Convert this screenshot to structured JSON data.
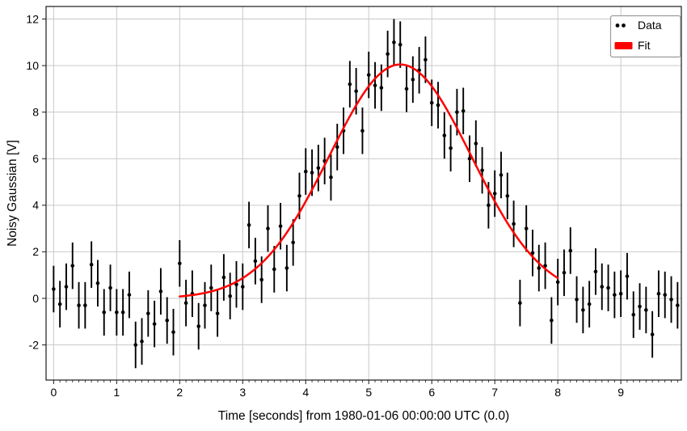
{
  "figure": {
    "background_color": "#ffffff",
    "grid_color": "#c9c9c9",
    "spine_color": "#1a1a1a",
    "data_color": "#000000",
    "fit_color": "#ff0000",
    "legend_border_color": "#9b9b9b"
  },
  "chart_data": {
    "type": "scatter",
    "title": "",
    "xlabel": "Time [seconds] from 1980-01-06 00:00:00 UTC (0.0)",
    "ylabel": "Noisy Gaussian [V]",
    "xlim": [
      -0.12,
      9.96
    ],
    "ylim": [
      -3.51,
      12.54
    ],
    "x_major_ticks": [
      0,
      1,
      2,
      3,
      4,
      5,
      6,
      7,
      8,
      9
    ],
    "x_minor_step": 0.1,
    "y_major_ticks": [
      -2,
      0,
      2,
      4,
      6,
      8,
      10,
      12
    ],
    "grid": true,
    "legend": {
      "position": "upper-right",
      "entries": [
        {
          "label": "Data",
          "type": "scatter",
          "color": "#000000"
        },
        {
          "label": "Fit",
          "type": "line",
          "color": "#ff0000"
        }
      ]
    },
    "series": [
      {
        "name": "Data",
        "type": "errorbar",
        "color": "#000000",
        "marker": "point",
        "yerr": 1.0,
        "x_start": 0.0,
        "x_step": 0.1,
        "y": [
          0.4,
          -0.25,
          0.5,
          1.4,
          -0.3,
          -0.3,
          1.45,
          0.65,
          -0.6,
          0.45,
          -0.6,
          -0.6,
          0.15,
          -2.0,
          -1.85,
          -0.65,
          -1.1,
          0.3,
          -0.95,
          -1.45,
          1.5,
          -0.2,
          0.2,
          -1.2,
          -0.3,
          0.45,
          -0.65,
          0.9,
          0.1,
          0.6,
          0.5,
          3.15,
          1.6,
          0.8,
          3.0,
          1.25,
          3.1,
          1.3,
          2.4,
          4.4,
          5.45,
          5.4,
          5.6,
          5.9,
          5.2,
          6.5,
          7.2,
          9.2,
          8.9,
          7.2,
          9.6,
          9.15,
          9.05,
          10.5,
          11.0,
          10.9,
          9.0,
          9.4,
          9.8,
          10.25,
          8.4,
          8.3,
          7.0,
          6.45,
          8.0,
          8.05,
          6.0,
          6.65,
          5.5,
          4.0,
          4.5,
          5.3,
          4.4,
          3.2,
          -0.2,
          3.0,
          1.95,
          1.3,
          1.4,
          -0.95,
          0.7,
          1.1,
          2.05,
          -0.05,
          -0.5,
          -0.25,
          1.15,
          0.5,
          0.45,
          0.15,
          0.2,
          0.95,
          -0.7,
          -0.35,
          -0.5,
          -1.55,
          0.2,
          0.15,
          -0.05,
          -0.3
        ]
      },
      {
        "name": "Fit",
        "type": "gaussian-line",
        "color": "#ff0000",
        "line_width": 2.5,
        "params": {
          "amplitude": 10.05,
          "mean": 5.5,
          "sigma": 1.13
        },
        "x_range": [
          2.0,
          8.0
        ]
      }
    ]
  }
}
